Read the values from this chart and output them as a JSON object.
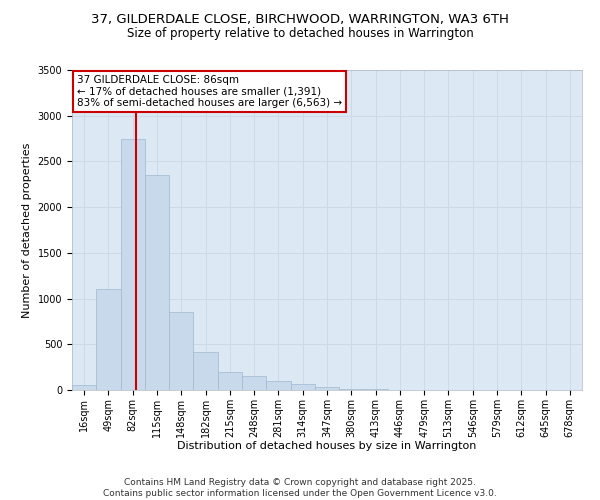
{
  "title_line1": "37, GILDERDALE CLOSE, BIRCHWOOD, WARRINGTON, WA3 6TH",
  "title_line2": "Size of property relative to detached houses in Warrington",
  "xlabel": "Distribution of detached houses by size in Warrington",
  "ylabel": "Number of detached properties",
  "categories": [
    "16sqm",
    "49sqm",
    "82sqm",
    "115sqm",
    "148sqm",
    "182sqm",
    "215sqm",
    "248sqm",
    "281sqm",
    "314sqm",
    "347sqm",
    "380sqm",
    "413sqm",
    "446sqm",
    "479sqm",
    "513sqm",
    "546sqm",
    "579sqm",
    "612sqm",
    "645sqm",
    "678sqm"
  ],
  "values": [
    60,
    1100,
    2750,
    2350,
    850,
    420,
    200,
    155,
    100,
    65,
    28,
    14,
    7,
    5,
    3,
    2,
    2,
    1,
    1,
    1,
    1
  ],
  "bar_color": "#c8d9ec",
  "bar_edge_color": "#a0b8d0",
  "vline_color": "#cc0000",
  "vline_x_pos": 2.12,
  "annotation_text": "37 GILDERDALE CLOSE: 86sqm\n← 17% of detached houses are smaller (1,391)\n83% of semi-detached houses are larger (6,563) →",
  "annotation_box_facecolor": "#ffffff",
  "annotation_box_edgecolor": "#cc0000",
  "ylim": [
    0,
    3500
  ],
  "yticks": [
    0,
    500,
    1000,
    1500,
    2000,
    2500,
    3000,
    3500
  ],
  "grid_color": "#ccd9e8",
  "background_color": "#dce8f4",
  "footer_line1": "Contains HM Land Registry data © Crown copyright and database right 2025.",
  "footer_line2": "Contains public sector information licensed under the Open Government Licence v3.0.",
  "title_fontsize": 9.5,
  "subtitle_fontsize": 8.5,
  "axis_label_fontsize": 8,
  "tick_fontsize": 7,
  "annotation_fontsize": 7.5,
  "footer_fontsize": 6.5
}
